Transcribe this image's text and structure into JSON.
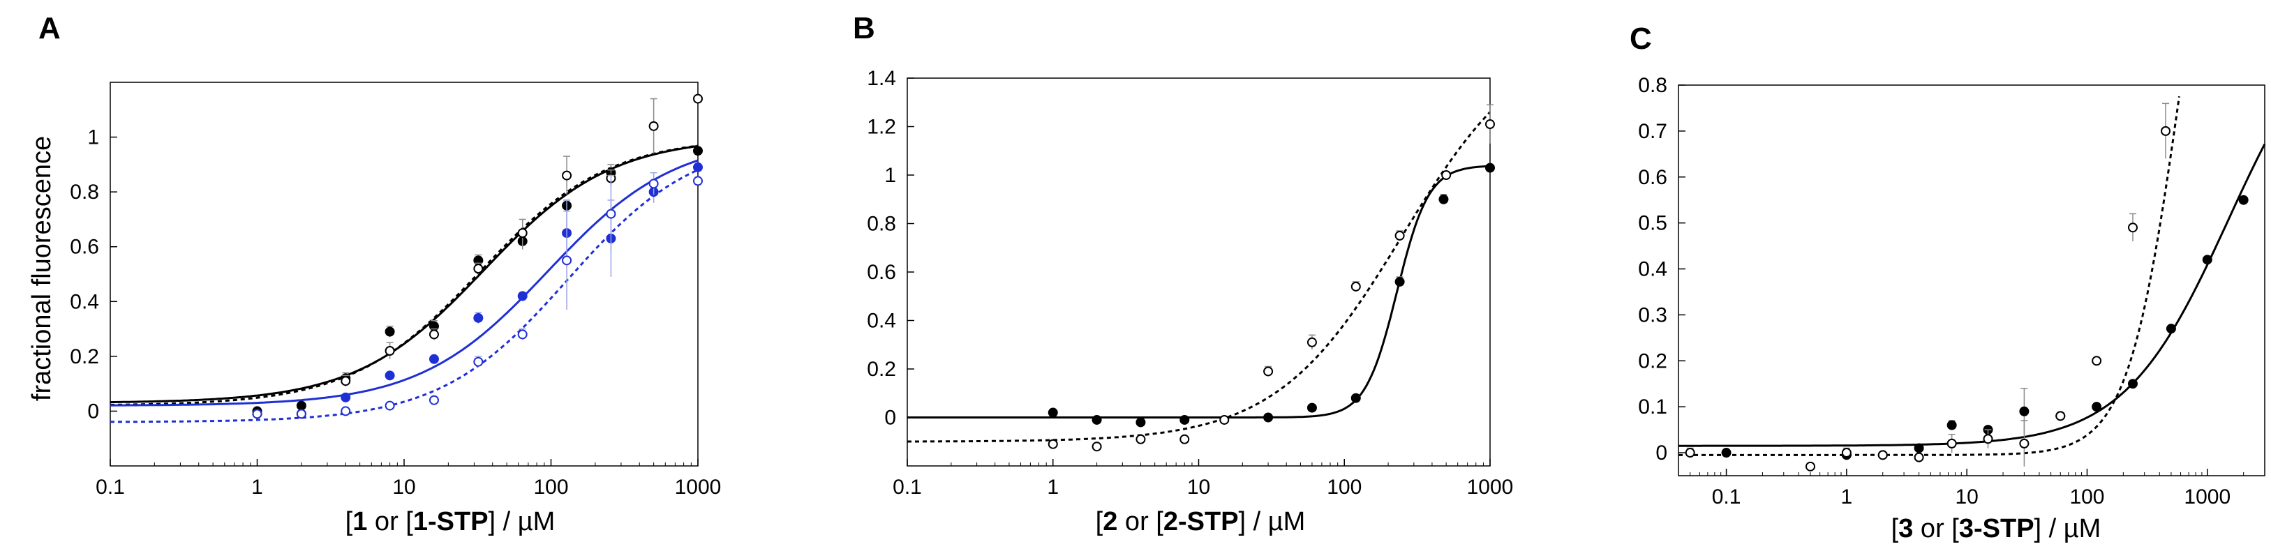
{
  "chart_data": [
    {
      "panel": "A",
      "type": "scatter",
      "x_scale": "log",
      "xlim": [
        0.1,
        1000
      ],
      "ylim": [
        -0.2,
        1.2
      ],
      "x_ticks": [
        "0.1",
        "1",
        "10",
        "100",
        "1000"
      ],
      "y_ticks": [
        "0",
        "0.2",
        "0.4",
        "0.6",
        "0.8",
        "1"
      ],
      "ylabel": "fractional fluorescence",
      "xlabel": {
        "a": "1",
        "b": " or [",
        "c": "1-STP",
        "d": "] / µM"
      },
      "series": [
        {
          "marker": "filled",
          "color": "#000000",
          "x": [
            1,
            2,
            4,
            8,
            16,
            32,
            64,
            128,
            256,
            1000
          ],
          "y": [
            0.0,
            0.02,
            0.12,
            0.29,
            0.31,
            0.55,
            0.62,
            0.75,
            0.87,
            0.95
          ],
          "yerr": [
            0,
            0,
            0.02,
            0.02,
            0.02,
            0.02,
            0.03,
            0.02,
            0.03,
            0
          ]
        },
        {
          "marker": "open",
          "color": "#000000",
          "x": [
            1,
            2,
            4,
            8,
            16,
            32,
            64,
            128,
            256,
            500,
            1000
          ],
          "y": [
            -0.01,
            -0.01,
            0.11,
            0.22,
            0.28,
            0.52,
            0.65,
            0.86,
            0.85,
            1.04,
            1.14
          ],
          "yerr": [
            0,
            0,
            0.02,
            0.03,
            0.02,
            0.02,
            0.05,
            0.07,
            0.03,
            0.1,
            0
          ]
        },
        {
          "marker": "filled",
          "color": "#1f2fd6",
          "x": [
            4,
            8,
            16,
            32,
            64,
            128,
            256,
            500,
            1000
          ],
          "y": [
            0.05,
            0.13,
            0.19,
            0.34,
            0.42,
            0.65,
            0.63,
            0.8,
            0.89
          ],
          "yerr": [
            0,
            0,
            0.01,
            0.02,
            0.01,
            0.12,
            0.14,
            0.04,
            0
          ]
        },
        {
          "marker": "open",
          "color": "#1f2fd6",
          "x": [
            1,
            2,
            4,
            8,
            16,
            32,
            64,
            128,
            256,
            500,
            1000
          ],
          "y": [
            -0.01,
            -0.01,
            0.0,
            0.02,
            0.04,
            0.18,
            0.28,
            0.55,
            0.72,
            0.83,
            0.84
          ],
          "yerr": [
            0,
            0,
            0,
            0,
            0,
            0.02,
            0.02,
            0.18,
            0.14,
            0.04,
            0
          ]
        }
      ],
      "fits": [
        {
          "color": "#000000",
          "dashed": false,
          "bottom": 0.03,
          "top": 1.0,
          "ec50": 35,
          "hill": 1.0
        },
        {
          "color": "#000000",
          "dashed": true,
          "bottom": 0.02,
          "top": 1.0,
          "ec50": 33,
          "hill": 1.0
        },
        {
          "color": "#1f2fd6",
          "dashed": false,
          "bottom": 0.02,
          "top": 1.0,
          "ec50": 95,
          "hill": 1.0
        },
        {
          "color": "#1f2fd6",
          "dashed": true,
          "bottom": -0.04,
          "top": 1.0,
          "ec50": 130,
          "hill": 1.0
        }
      ]
    },
    {
      "panel": "B",
      "type": "scatter",
      "x_scale": "log",
      "xlim": [
        0.1,
        1000
      ],
      "ylim": [
        -0.2,
        1.4
      ],
      "x_ticks": [
        "0.1",
        "1",
        "10",
        "100",
        "1000"
      ],
      "y_ticks": [
        "0",
        "0.2",
        "0.4",
        "0.6",
        "0.8",
        "1",
        "1.2",
        "1.4"
      ],
      "xlabel": {
        "a": "2",
        "b": " or [",
        "c": "2-STP",
        "d": "] / µM"
      },
      "series": [
        {
          "marker": "filled",
          "color": "#000000",
          "x": [
            1,
            2,
            4,
            8,
            30,
            60,
            120,
            240,
            480,
            1000
          ],
          "y": [
            0.02,
            -0.01,
            -0.02,
            -0.01,
            0.0,
            0.04,
            0.08,
            0.56,
            0.9,
            1.03
          ],
          "yerr": [
            0,
            0,
            0,
            0,
            0,
            0,
            0,
            0.02,
            0.02,
            0
          ]
        },
        {
          "marker": "open",
          "color": "#000000",
          "x": [
            1,
            2,
            4,
            8,
            15,
            30,
            60,
            120,
            240,
            500,
            1000
          ],
          "y": [
            -0.11,
            -0.12,
            -0.09,
            -0.09,
            -0.01,
            0.19,
            0.31,
            0.54,
            0.75,
            1.0,
            1.21
          ],
          "yerr": [
            0,
            0,
            0,
            0,
            0,
            0.02,
            0.03,
            0.02,
            0.02,
            0,
            0.08
          ]
        }
      ],
      "fits": [
        {
          "color": "#000000",
          "dashed": false,
          "bottom": 0.0,
          "top": 1.04,
          "ec50": 230,
          "hill": 4.0
        },
        {
          "color": "#000000",
          "dashed": true,
          "bottom": -0.1,
          "top": 1.6,
          "ec50": 250,
          "hill": 1.0
        }
      ]
    },
    {
      "panel": "C",
      "type": "scatter",
      "x_scale": "log",
      "xlim": [
        0.04,
        3000
      ],
      "ylim": [
        -0.05,
        0.8
      ],
      "x_ticks": [
        "0.1",
        "1",
        "10",
        "100",
        "1000"
      ],
      "y_ticks": [
        "0",
        "0.1",
        "0.2",
        "0.3",
        "0.4",
        "0.5",
        "0.6",
        "0.7",
        "0.8"
      ],
      "xlabel": {
        "a": "3",
        "b": " or [",
        "c": "3-STP",
        "d": "] / µM"
      },
      "series": [
        {
          "marker": "filled",
          "color": "#000000",
          "x": [
            0.1,
            1,
            2,
            4,
            7.5,
            15,
            30,
            60,
            120,
            240,
            500,
            1000,
            2000
          ],
          "y": [
            0.0,
            -0.005,
            -0.005,
            0.01,
            0.06,
            0.05,
            0.09,
            0.08,
            0.1,
            0.15,
            0.27,
            0.42,
            0.55
          ],
          "yerr": [
            0,
            0,
            0,
            0,
            0.01,
            0,
            0.05,
            0,
            0,
            0,
            0,
            0,
            0
          ]
        },
        {
          "marker": "open",
          "color": "#000000",
          "x": [
            0.05,
            0.5,
            1,
            2,
            4,
            7.5,
            15,
            30,
            60,
            120,
            240,
            450
          ],
          "y": [
            0.0,
            -0.03,
            0.0,
            -0.005,
            -0.01,
            0.02,
            0.03,
            0.02,
            0.08,
            0.2,
            0.49,
            0.7
          ],
          "yerr": [
            0.01,
            0,
            0.01,
            0,
            0,
            0.02,
            0.02,
            0.05,
            0,
            0,
            0.03,
            0.06
          ]
        }
      ],
      "fits": [
        {
          "color": "#000000",
          "dashed": false,
          "bottom": 0.015,
          "top": 1.0,
          "ec50": 1500,
          "hill": 1.0
        },
        {
          "color": "#000000",
          "dashed": true,
          "bottom": -0.005,
          "top": 1.6,
          "ec50": 600,
          "hill": 2.0
        }
      ]
    }
  ],
  "panels": [
    {
      "label": "A"
    },
    {
      "label": "B"
    },
    {
      "label": "C"
    }
  ]
}
